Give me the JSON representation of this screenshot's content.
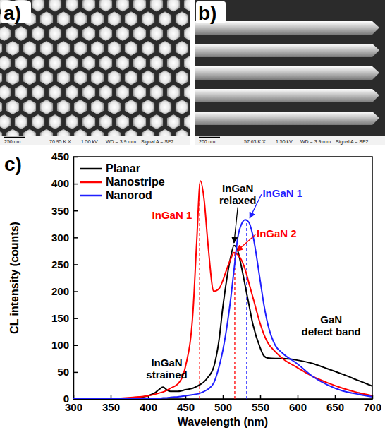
{
  "images": [
    {
      "label": "a)",
      "scale_bar": "250 nm",
      "magnification": "70.95 K X",
      "info": [
        "1.50 kV",
        "WD = 3.9 mm",
        "Signal A = SE2"
      ]
    },
    {
      "label": "b)",
      "scale_bar": "200 nm",
      "magnification": "57.63 K X",
      "info": [
        "1.50 kV",
        "WD = 3.9 mm",
        "Signal A = SE2"
      ]
    }
  ],
  "chart_data": {
    "type": "line",
    "label": "c)",
    "x_label": "Wavelength (nm)",
    "y_label": "CL intensity (counts)",
    "xlim": [
      300,
      700
    ],
    "xticks": [
      300,
      350,
      400,
      450,
      500,
      550,
      600,
      650,
      700
    ],
    "ylim": [
      0,
      450
    ],
    "yticks": [
      0,
      50,
      100,
      150,
      200,
      250,
      300,
      350,
      400,
      450
    ],
    "grid": false,
    "legend": "upper left",
    "x": [
      300,
      320,
      340,
      360,
      380,
      400,
      410,
      415,
      420,
      425,
      430,
      440,
      450,
      460,
      465,
      470,
      475,
      480,
      488,
      495,
      500,
      505,
      510,
      515,
      520,
      525,
      530,
      535,
      540,
      550,
      555,
      560,
      570,
      580,
      600,
      620,
      640,
      660,
      680,
      700
    ],
    "series": [
      {
        "name": "Planar",
        "color": "#000000",
        "values": [
          0,
          0,
          0,
          0,
          2,
          6,
          12,
          18,
          22,
          17,
          14,
          14,
          17,
          20,
          23,
          27,
          32,
          40,
          60,
          110,
          170,
          220,
          260,
          285,
          275,
          245,
          210,
          175,
          140,
          95,
          80,
          76,
          75,
          75,
          72,
          66,
          56,
          46,
          35,
          24
        ]
      },
      {
        "name": "Nanostripe",
        "color": "#ff0000",
        "values": [
          0,
          0,
          0,
          1,
          3,
          6,
          9,
          11,
          13,
          16,
          20,
          28,
          60,
          160,
          290,
          405,
          370,
          290,
          200,
          205,
          220,
          240,
          258,
          272,
          268,
          258,
          240,
          215,
          190,
          140,
          120,
          105,
          88,
          75,
          58,
          42,
          30,
          20,
          12,
          6
        ]
      },
      {
        "name": "Nanorod",
        "color": "#1f1fff",
        "values": [
          0,
          0,
          0,
          0,
          0,
          0,
          1,
          1,
          2,
          2,
          3,
          4,
          6,
          8,
          9,
          11,
          14,
          18,
          30,
          60,
          90,
          130,
          180,
          240,
          300,
          325,
          333,
          328,
          305,
          220,
          175,
          140,
          100,
          85,
          65,
          42,
          26,
          15,
          9,
          4
        ]
      }
    ],
    "vlines": [
      {
        "x": 469,
        "y": 405,
        "color": "#ff0000",
        "line_style": "dashed"
      },
      {
        "x": 516,
        "y": 272,
        "color": "#ff0000",
        "line_style": "dashed"
      },
      {
        "x": 532,
        "y": 333,
        "color": "#1f1fff",
        "line_style": "dashed"
      }
    ],
    "annotations": [
      {
        "text": [
          "InGaN",
          "strained"
        ],
        "x": 425,
        "y": 60,
        "color": "#000000"
      },
      {
        "text": [
          "InGaN",
          "relaxed"
        ],
        "x": 520,
        "y": 385,
        "color": "#000000",
        "arrow_to": [
          515,
          290
        ]
      },
      {
        "text": [
          "InGaN 1"
        ],
        "x": 432,
        "y": 335,
        "color": "#ff0000"
      },
      {
        "text": [
          "InGaN 1"
        ],
        "x": 580,
        "y": 375,
        "color": "#1f1fff",
        "arrow_to": [
          536,
          336
        ]
      },
      {
        "text": [
          "InGaN 2"
        ],
        "x": 572,
        "y": 300,
        "color": "#ff0000",
        "arrow_to": [
          519,
          275
        ]
      },
      {
        "text": [
          "GaN",
          "defect band"
        ],
        "x": 645,
        "y": 140,
        "color": "#000000"
      }
    ]
  }
}
